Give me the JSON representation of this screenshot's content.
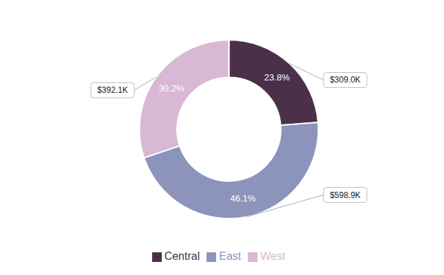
{
  "chart_data": {
    "type": "pie",
    "categories": [
      "Central",
      "East",
      "West"
    ],
    "values": [
      23.8,
      46.1,
      30.2
    ],
    "value_labels": [
      "23.8%",
      "46.1%",
      "30.2%"
    ],
    "annotations": [
      "$309.0K",
      "$598.9K",
      "$392.1K"
    ],
    "colors": [
      "#4a3149",
      "#8d94bc",
      "#d8b8d4"
    ],
    "data_labels": true,
    "legend": "bottom"
  }
}
